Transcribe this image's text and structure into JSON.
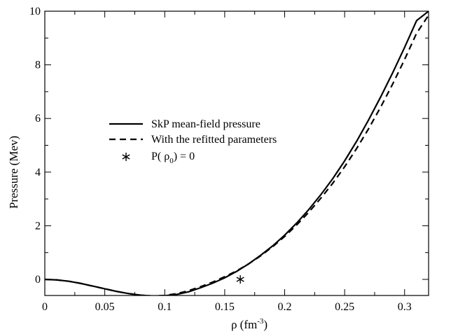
{
  "chart_data": {
    "type": "line",
    "xlabel": "ρ (fm",
    "xlabel_sup": "-3",
    "xlabel_close": ")",
    "ylabel": "Pressure (Mev)",
    "xlim": [
      0,
      0.32
    ],
    "ylim": [
      -0.6,
      10
    ],
    "xticks": [
      0,
      0.05,
      0.1,
      0.15,
      0.2,
      0.25,
      0.3
    ],
    "xtick_labels": [
      "0",
      "0.05",
      "0.1",
      "0.15",
      "0.2",
      "0.25",
      "0.3"
    ],
    "yticks": [
      0,
      2,
      4,
      6,
      8,
      10
    ],
    "ytick_labels": [
      "0",
      "2",
      "4",
      "6",
      "8",
      "10"
    ],
    "grid": false,
    "legend_position": "center-left",
    "series": [
      {
        "name": "SkP mean-field pressure",
        "style": "solid",
        "color": "#000000",
        "x": [
          0,
          0.01,
          0.02,
          0.03,
          0.04,
          0.05,
          0.06,
          0.07,
          0.08,
          0.09,
          0.1,
          0.11,
          0.12,
          0.13,
          0.14,
          0.15,
          0.16,
          0.17,
          0.18,
          0.19,
          0.2,
          0.21,
          0.22,
          0.23,
          0.24,
          0.25,
          0.26,
          0.27,
          0.28,
          0.29,
          0.3,
          0.31,
          0.32
        ],
        "y": [
          0,
          -0.02,
          -0.07,
          -0.15,
          -0.25,
          -0.35,
          -0.45,
          -0.53,
          -0.59,
          -0.62,
          -0.61,
          -0.56,
          -0.46,
          -0.31,
          -0.14,
          0.06,
          0.3,
          0.58,
          0.9,
          1.25,
          1.65,
          2.1,
          2.6,
          3.15,
          3.75,
          4.42,
          5.15,
          5.95,
          6.8,
          7.7,
          8.65,
          9.65,
          10.0
        ]
      },
      {
        "name": "With the refitted parameters",
        "style": "dashed",
        "color": "#000000",
        "x": [
          0,
          0.01,
          0.02,
          0.03,
          0.04,
          0.05,
          0.06,
          0.07,
          0.08,
          0.09,
          0.1,
          0.11,
          0.12,
          0.13,
          0.14,
          0.15,
          0.16,
          0.17,
          0.18,
          0.19,
          0.2,
          0.21,
          0.22,
          0.23,
          0.24,
          0.25,
          0.26,
          0.27,
          0.28,
          0.29,
          0.3,
          0.31,
          0.32
        ],
        "y": [
          0,
          -0.02,
          -0.07,
          -0.15,
          -0.25,
          -0.35,
          -0.45,
          -0.53,
          -0.59,
          -0.62,
          -0.6,
          -0.53,
          -0.42,
          -0.27,
          -0.1,
          0.1,
          0.32,
          0.58,
          0.88,
          1.22,
          1.6,
          2.03,
          2.5,
          3.02,
          3.58,
          4.2,
          4.88,
          5.62,
          6.42,
          7.28,
          8.2,
          9.18,
          9.85
        ]
      }
    ],
    "marker": {
      "name": "P( ρ",
      "name_sub": "0",
      "name_tail": ") = 0",
      "symbol": "asterisk",
      "x": 0.163,
      "y": 0
    }
  }
}
